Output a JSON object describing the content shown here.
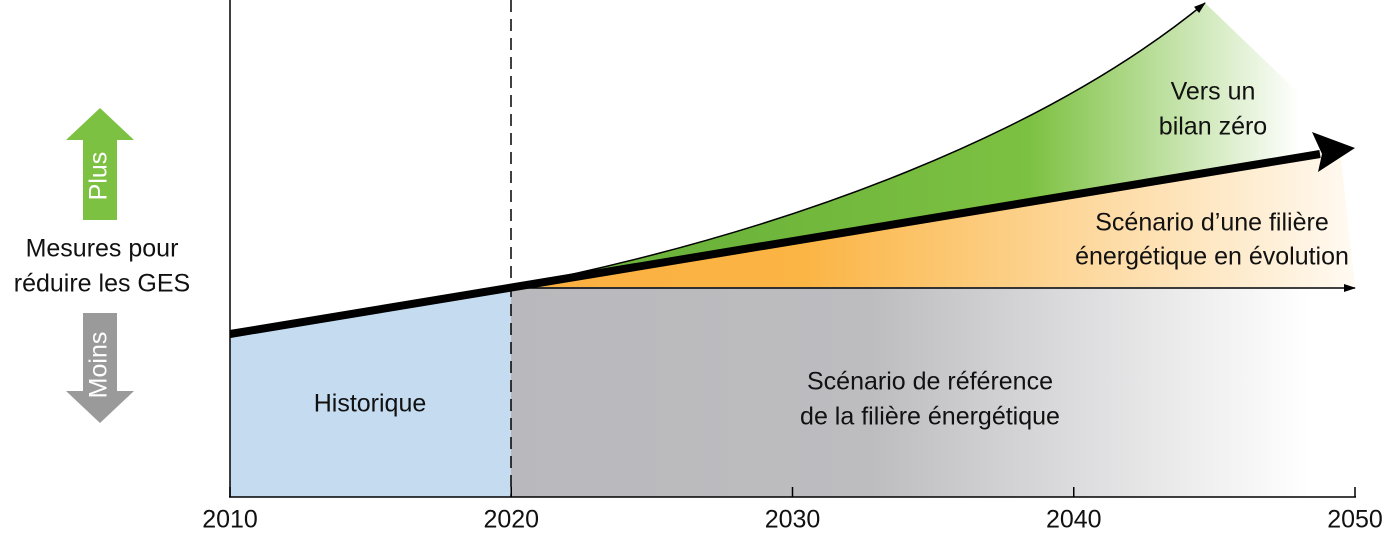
{
  "y_axis": {
    "label_lines": [
      "Mesures pour",
      "réduire les GES"
    ],
    "up": "Plus",
    "down": "Moins"
  },
  "x_axis": {
    "ticks": [
      "2010",
      "2020",
      "2030",
      "2040",
      "2050"
    ]
  },
  "regions": {
    "historical": "Historique",
    "reference": [
      "Scénario de référence",
      "de la filière énergétique"
    ],
    "evolving": [
      "Scénario d’une filière",
      "énergétique en évolution"
    ],
    "net_zero": [
      "Vers un",
      "bilan zéro"
    ]
  }
}
